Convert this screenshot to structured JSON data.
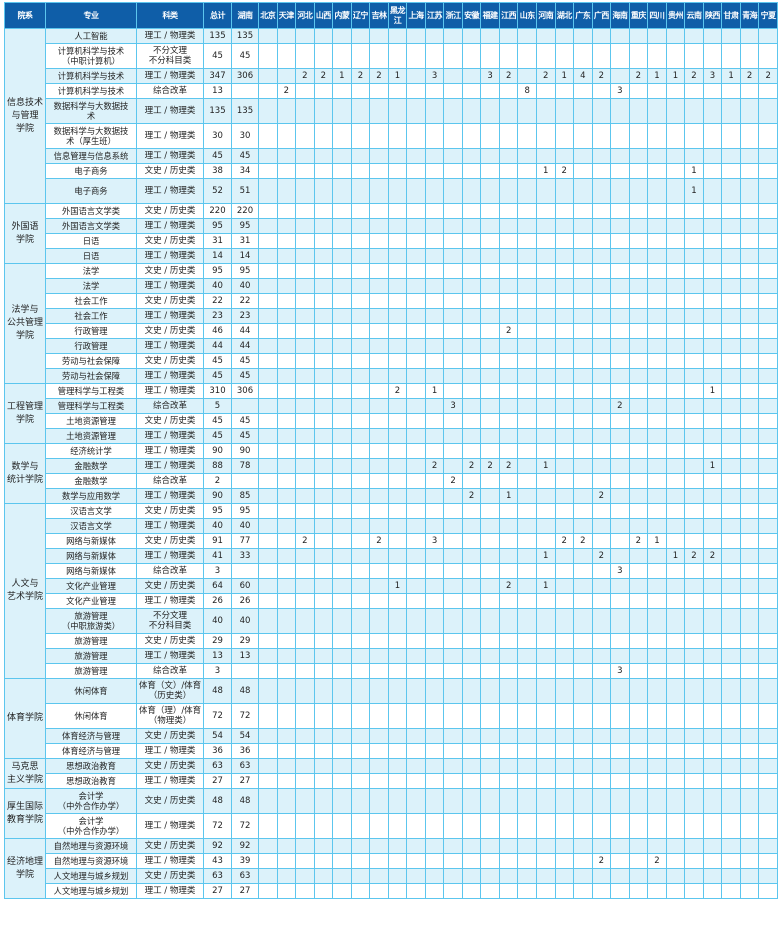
{
  "header": {
    "college": "院系",
    "major": "专业",
    "category": "科类",
    "total": "总计",
    "hunan": "湖南"
  },
  "provinces": [
    "北京",
    "天津",
    "河北",
    "山西",
    "内蒙",
    "辽宁",
    "吉林",
    "黑龙江",
    "上海",
    "江苏",
    "浙江",
    "安徽",
    "福建",
    "江西",
    "山东",
    "河南",
    "湖北",
    "广东",
    "广西",
    "海南",
    "重庆",
    "四川",
    "贵州",
    "云南",
    "陕西",
    "甘肃",
    "青海",
    "宁夏"
  ],
  "colors": {
    "header": "#0f5ea8",
    "border": "#5cc6ee",
    "row_shade": "#dcf2fa"
  },
  "colleges": [
    {
      "name": "信息技术\n与管理\n学院",
      "rows": [
        {
          "major": "人工智能",
          "category": "理工 / 物理类",
          "total": "135",
          "hunan": "135",
          "p": {}
        },
        {
          "major": "计算机科学与技术\n（中职计算机）",
          "category": "不分文理\n不分科目类",
          "total": "45",
          "hunan": "45",
          "p": {},
          "tall": true
        },
        {
          "major": "计算机科学与技术",
          "category": "理工 / 物理类",
          "total": "347",
          "hunan": "306",
          "p": {
            "河北": "2",
            "山西": "2",
            "内蒙": "1",
            "辽宁": "2",
            "吉林": "2",
            "黑龙江": "1",
            "江苏": "3",
            "福建": "3",
            "江西": "2",
            "河南": "2",
            "湖北": "1",
            "广东": "4",
            "广西": "2",
            "重庆": "2",
            "四川": "1",
            "贵州": "1",
            "云南": "2",
            "陕西": "3",
            "甘肃": "1",
            "青海": "2",
            "宁夏": "2"
          }
        },
        {
          "major": "计算机科学与技术",
          "category": "综合改革",
          "total": "13",
          "hunan": "",
          "p": {
            "天津": "2",
            "山东": "8",
            "海南": "3"
          }
        },
        {
          "major": "数据科学与大数据技\n术",
          "category": "理工 / 物理类",
          "total": "135",
          "hunan": "135",
          "p": {},
          "tall": true
        },
        {
          "major": "数据科学与大数据技\n术（厚生班）",
          "category": "理工 / 物理类",
          "total": "30",
          "hunan": "30",
          "p": {},
          "tall": true
        },
        {
          "major": "信息管理与信息系统",
          "category": "理工 / 物理类",
          "total": "45",
          "hunan": "45",
          "p": {}
        },
        {
          "major": "电子商务",
          "category": "文史 / 历史类",
          "total": "38",
          "hunan": "34",
          "p": {
            "河南": "1",
            "湖北": "2",
            "云南": "1"
          }
        },
        {
          "major": "电子商务",
          "category": "理工 / 物理类",
          "total": "52",
          "hunan": "51",
          "p": {
            "云南": "1"
          },
          "tall": true
        }
      ]
    },
    {
      "name": "外国语\n学院",
      "rows": [
        {
          "major": "外国语言文学类",
          "category": "文史 / 历史类",
          "total": "220",
          "hunan": "220",
          "p": {}
        },
        {
          "major": "外国语言文学类",
          "category": "理工 / 物理类",
          "total": "95",
          "hunan": "95",
          "p": {}
        },
        {
          "major": "日语",
          "category": "文史 / 历史类",
          "total": "31",
          "hunan": "31",
          "p": {}
        },
        {
          "major": "日语",
          "category": "理工 / 物理类",
          "total": "14",
          "hunan": "14",
          "p": {}
        }
      ]
    },
    {
      "name": "法学与\n公共管理\n学院",
      "rows": [
        {
          "major": "法学",
          "category": "文史 / 历史类",
          "total": "95",
          "hunan": "95",
          "p": {}
        },
        {
          "major": "法学",
          "category": "理工 / 物理类",
          "total": "40",
          "hunan": "40",
          "p": {}
        },
        {
          "major": "社会工作",
          "category": "文史 / 历史类",
          "total": "22",
          "hunan": "22",
          "p": {}
        },
        {
          "major": "社会工作",
          "category": "理工 / 物理类",
          "total": "23",
          "hunan": "23",
          "p": {}
        },
        {
          "major": "行政管理",
          "category": "文史 / 历史类",
          "total": "46",
          "hunan": "44",
          "p": {
            "江西": "2"
          }
        },
        {
          "major": "行政管理",
          "category": "理工 / 物理类",
          "total": "44",
          "hunan": "44",
          "p": {}
        },
        {
          "major": "劳动与社会保障",
          "category": "文史 / 历史类",
          "total": "45",
          "hunan": "45",
          "p": {}
        },
        {
          "major": "劳动与社会保障",
          "category": "理工 / 物理类",
          "total": "45",
          "hunan": "45",
          "p": {}
        }
      ]
    },
    {
      "name": "工程管理\n学院",
      "rows": [
        {
          "major": "管理科学与工程类",
          "category": "理工 / 物理类",
          "total": "310",
          "hunan": "306",
          "p": {
            "黑龙江": "2",
            "江苏": "1",
            "陕西": "1"
          }
        },
        {
          "major": "管理科学与工程类",
          "category": "综合改革",
          "total": "5",
          "hunan": "",
          "p": {
            "浙江": "3",
            "海南": "2"
          }
        },
        {
          "major": "土地资源管理",
          "category": "文史 / 历史类",
          "total": "45",
          "hunan": "45",
          "p": {}
        },
        {
          "major": "土地资源管理",
          "category": "理工 / 物理类",
          "total": "45",
          "hunan": "45",
          "p": {}
        }
      ]
    },
    {
      "name": "数学与\n统计学院",
      "rows": [
        {
          "major": "经济统计学",
          "category": "理工 / 物理类",
          "total": "90",
          "hunan": "90",
          "p": {}
        },
        {
          "major": "金融数学",
          "category": "理工 / 物理类",
          "total": "88",
          "hunan": "78",
          "p": {
            "江苏": "2",
            "安徽": "2",
            "福建": "2",
            "江西": "2",
            "河南": "1",
            "陕西": "1"
          }
        },
        {
          "major": "金融数学",
          "category": "综合改革",
          "total": "2",
          "hunan": "",
          "p": {
            "浙江": "2"
          }
        },
        {
          "major": "数学与应用数学",
          "category": "理工 / 物理类",
          "total": "90",
          "hunan": "85",
          "p": {
            "安徽": "2",
            "江西": "1",
            "广西": "2"
          }
        }
      ]
    },
    {
      "name": "人文与\n艺术学院",
      "rows": [
        {
          "major": "汉语言文学",
          "category": "文史 / 历史类",
          "total": "95",
          "hunan": "95",
          "p": {}
        },
        {
          "major": "汉语言文学",
          "category": "理工 / 物理类",
          "total": "40",
          "hunan": "40",
          "p": {}
        },
        {
          "major": "网络与新媒体",
          "category": "文史 / 历史类",
          "total": "91",
          "hunan": "77",
          "p": {
            "河北": "2",
            "吉林": "2",
            "江苏": "3",
            "湖北": "2",
            "广东": "2",
            "重庆": "2",
            "四川": "1"
          }
        },
        {
          "major": "网络与新媒体",
          "category": "理工 / 物理类",
          "total": "41",
          "hunan": "33",
          "p": {
            "河南": "1",
            "广西": "2",
            "贵州": "1",
            "云南": "2",
            "陕西": "2"
          }
        },
        {
          "major": "网络与新媒体",
          "category": "综合改革",
          "total": "3",
          "hunan": "",
          "p": {
            "海南": "3"
          }
        },
        {
          "major": "文化产业管理",
          "category": "文史 / 历史类",
          "total": "64",
          "hunan": "60",
          "p": {
            "黑龙江": "1",
            "江西": "2",
            "河南": "1"
          }
        },
        {
          "major": "文化产业管理",
          "category": "理工 / 物理类",
          "total": "26",
          "hunan": "26",
          "p": {}
        },
        {
          "major": "旅游管理\n（中职旅游类）",
          "category": "不分文理\n不分科目类",
          "total": "40",
          "hunan": "40",
          "p": {},
          "tall": true
        },
        {
          "major": "旅游管理",
          "category": "文史 / 历史类",
          "total": "29",
          "hunan": "29",
          "p": {}
        },
        {
          "major": "旅游管理",
          "category": "理工 / 物理类",
          "total": "13",
          "hunan": "13",
          "p": {}
        },
        {
          "major": "旅游管理",
          "category": "综合改革",
          "total": "3",
          "hunan": "",
          "p": {
            "海南": "3"
          }
        }
      ]
    },
    {
      "name": "体育学院",
      "rows": [
        {
          "major": "休闲体育",
          "category": "体育（文）/体育\n（历史类）",
          "total": "48",
          "hunan": "48",
          "p": {},
          "tall": true
        },
        {
          "major": "休闲体育",
          "category": "体育（理）/体育\n（物理类）",
          "total": "72",
          "hunan": "72",
          "p": {},
          "tall": true
        },
        {
          "major": "体育经济与管理",
          "category": "文史 / 历史类",
          "total": "54",
          "hunan": "54",
          "p": {}
        },
        {
          "major": "体育经济与管理",
          "category": "理工 / 物理类",
          "total": "36",
          "hunan": "36",
          "p": {}
        }
      ]
    },
    {
      "name": "马克思\n主义学院",
      "rows": [
        {
          "major": "思想政治教育",
          "category": "文史 / 历史类",
          "total": "63",
          "hunan": "63",
          "p": {}
        },
        {
          "major": "思想政治教育",
          "category": "理工 / 物理类",
          "total": "27",
          "hunan": "27",
          "p": {}
        }
      ]
    },
    {
      "name": "厚生国际\n教育学院",
      "rows": [
        {
          "major": "会计学\n（中外合作办学）",
          "category": "文史 / 历史类",
          "total": "48",
          "hunan": "48",
          "p": {},
          "tall": true
        },
        {
          "major": "会计学\n（中外合作办学）",
          "category": "理工 / 物理类",
          "total": "72",
          "hunan": "72",
          "p": {},
          "tall": true
        }
      ]
    },
    {
      "name": "经济地理\n学院",
      "rows": [
        {
          "major": "自然地理与资源环境",
          "category": "文史 / 历史类",
          "total": "92",
          "hunan": "92",
          "p": {}
        },
        {
          "major": "自然地理与资源环境",
          "category": "理工 / 物理类",
          "total": "43",
          "hunan": "39",
          "p": {
            "广西": "2",
            "四川": "2"
          }
        },
        {
          "major": "人文地理与城乡规划",
          "category": "文史 / 历史类",
          "total": "63",
          "hunan": "63",
          "p": {}
        },
        {
          "major": "人文地理与城乡规划",
          "category": "理工 / 物理类",
          "total": "27",
          "hunan": "27",
          "p": {}
        }
      ]
    }
  ]
}
